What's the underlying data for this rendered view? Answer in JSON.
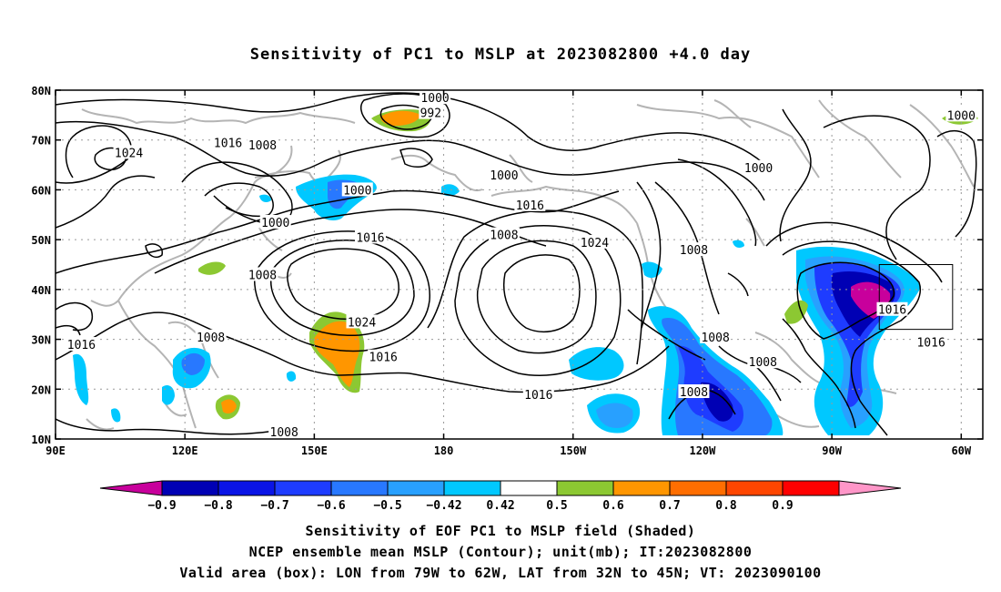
{
  "title": "Sensitivity of PC1 to MSLP at 2023082800 +4.0 day",
  "map": {
    "lon_range": [
      90,
      305
    ],
    "lat_range": [
      10,
      80
    ],
    "x_ticks": [
      {
        "lon": 90,
        "label": "90E"
      },
      {
        "lon": 120,
        "label": "120E"
      },
      {
        "lon": 150,
        "label": "150E"
      },
      {
        "lon": 180,
        "label": "180"
      },
      {
        "lon": 210,
        "label": "150W"
      },
      {
        "lon": 240,
        "label": "120W"
      },
      {
        "lon": 270,
        "label": "90W"
      },
      {
        "lon": 300,
        "label": "60W"
      }
    ],
    "y_ticks": [
      {
        "lat": 10,
        "label": "10N"
      },
      {
        "lat": 20,
        "label": "20N"
      },
      {
        "lat": 30,
        "label": "30N"
      },
      {
        "lat": 40,
        "label": "40N"
      },
      {
        "lat": 50,
        "label": "50N"
      },
      {
        "lat": 60,
        "label": "60N"
      },
      {
        "lat": 70,
        "label": "70N"
      },
      {
        "lat": 80,
        "label": "80N"
      }
    ],
    "grid": "dotted",
    "valid_box": {
      "lon_min": 281,
      "lon_max": 298,
      "lat_min": 32,
      "lat_max": 45
    },
    "contour_labels": [
      {
        "lon": 178,
        "lat": 78.5,
        "text": "1000"
      },
      {
        "lon": 177,
        "lat": 75.5,
        "text": "992"
      },
      {
        "lon": 300,
        "lat": 75,
        "text": "1000"
      },
      {
        "lon": 107,
        "lat": 67.5,
        "text": "1024"
      },
      {
        "lon": 130,
        "lat": 69.5,
        "text": "1016"
      },
      {
        "lon": 138,
        "lat": 69,
        "text": "1008"
      },
      {
        "lon": 160,
        "lat": 60,
        "text": "1000"
      },
      {
        "lon": 141,
        "lat": 53.5,
        "text": "1000"
      },
      {
        "lon": 194,
        "lat": 63,
        "text": "1000"
      },
      {
        "lon": 200,
        "lat": 57,
        "text": "1016"
      },
      {
        "lon": 253,
        "lat": 64.5,
        "text": "1000"
      },
      {
        "lon": 163,
        "lat": 50.5,
        "text": "1016"
      },
      {
        "lon": 194,
        "lat": 51,
        "text": "1008"
      },
      {
        "lon": 215,
        "lat": 49.5,
        "text": "1024"
      },
      {
        "lon": 238,
        "lat": 48,
        "text": "1008"
      },
      {
        "lon": 138,
        "lat": 43,
        "text": "1008"
      },
      {
        "lon": 161,
        "lat": 33.5,
        "text": "1024"
      },
      {
        "lon": 96,
        "lat": 29,
        "text": "1016"
      },
      {
        "lon": 126,
        "lat": 30.5,
        "text": "1008"
      },
      {
        "lon": 166,
        "lat": 26.5,
        "text": "1016"
      },
      {
        "lon": 202,
        "lat": 19,
        "text": "1016"
      },
      {
        "lon": 143,
        "lat": 11.5,
        "text": "1008"
      },
      {
        "lon": 243,
        "lat": 30.5,
        "text": "1008"
      },
      {
        "lon": 254,
        "lat": 25.5,
        "text": "1008"
      },
      {
        "lon": 238,
        "lat": 19.5,
        "text": "1008"
      },
      {
        "lon": 284,
        "lat": 36,
        "text": "1016"
      },
      {
        "lon": 293,
        "lat": 29.5,
        "text": "1016"
      }
    ]
  },
  "colorbar": {
    "colors": [
      "#c8009c",
      "#0000b4",
      "#0a14e6",
      "#1e3cff",
      "#2878ff",
      "#28a0ff",
      "#00c8ff",
      "#ffffff",
      "#8cc832",
      "#ff9600",
      "#ff6e00",
      "#ff4600",
      "#ff0000",
      "#ff96c8"
    ],
    "labels": [
      "−0.9",
      "−0.8",
      "−0.7",
      "−0.6",
      "−0.5",
      "−0.42",
      "0.42",
      "0.5",
      "0.6",
      "0.7",
      "0.8",
      "0.9"
    ]
  },
  "captions": [
    "Sensitivity of EOF PC1 to MSLP field (Shaded)",
    "NCEP ensemble mean MSLP (Contour); unit(mb); IT:2023082800",
    "Valid area (box): LON from 79W to 62W, LAT from 32N to 45N; VT: 2023090100"
  ]
}
